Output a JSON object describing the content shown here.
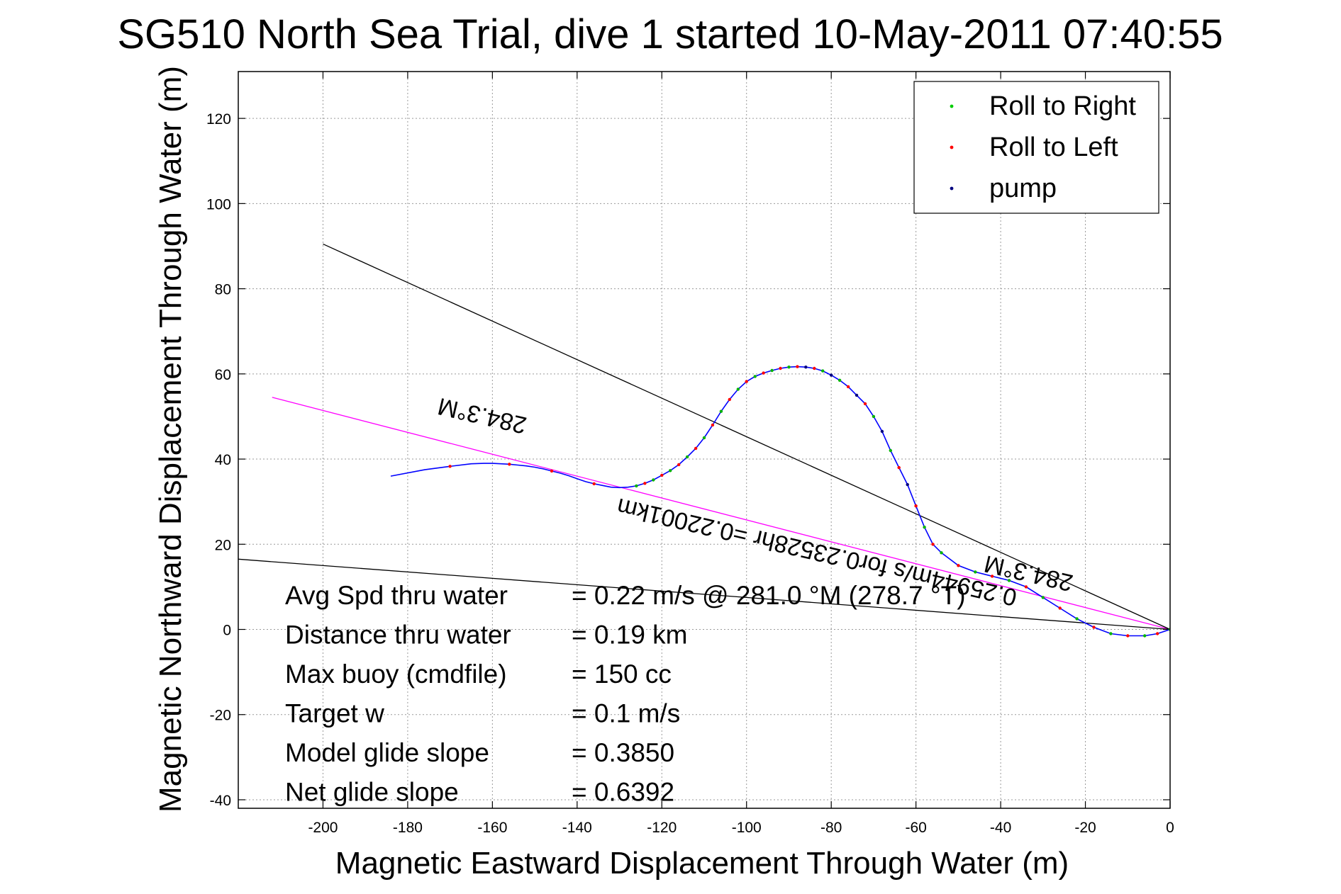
{
  "chart_data": {
    "type": "line",
    "title": "SG510 North Sea Trial, dive 1 started 10-May-2011 07:40:55",
    "xlabel": "Magnetic Eastward Displacement Through Water (m)",
    "ylabel": "Magnetic Northward Displacement Through Water (m)",
    "xlim": [
      -220,
      0
    ],
    "ylim": [
      -42,
      131
    ],
    "xticks": [
      -200,
      -180,
      -160,
      -140,
      -120,
      -100,
      -80,
      -60,
      -40,
      -20,
      0
    ],
    "yticks": [
      -40,
      -20,
      0,
      20,
      40,
      60,
      80,
      100,
      120
    ],
    "grid": true,
    "legend_position": "top-right",
    "legend": [
      {
        "label": "Roll to Right",
        "color": "#00cc00",
        "marker": "."
      },
      {
        "label": "Roll to Left",
        "color": "#ff0000",
        "marker": "."
      },
      {
        "label": "pump",
        "color": "#000080",
        "marker": "."
      }
    ],
    "series": [
      {
        "name": "track",
        "color": "#0000ff",
        "x": [
          0,
          -3,
          -6,
          -10,
          -14,
          -18,
          -22,
          -26,
          -30,
          -34,
          -38,
          -42,
          -46,
          -50,
          -54,
          -56,
          -58,
          -60,
          -62,
          -64,
          -66,
          -68,
          -70,
          -72,
          -74,
          -76,
          -78,
          -80,
          -82,
          -84,
          -86,
          -88,
          -90,
          -92,
          -94,
          -96,
          -98,
          -100,
          -102,
          -104,
          -106,
          -108,
          -110,
          -112,
          -114,
          -116,
          -118,
          -120,
          -122,
          -124,
          -126,
          -128,
          -130,
          -132,
          -134,
          -136,
          -138,
          -140,
          -142,
          -144,
          -146,
          -148,
          -150,
          -152,
          -154,
          -156,
          -158,
          -160,
          -162,
          -165,
          -170,
          -176,
          -184
        ],
        "y": [
          0,
          -1,
          -1.5,
          -1.5,
          -1,
          0.5,
          2.5,
          5,
          7.5,
          10,
          11.5,
          12.5,
          13.5,
          15,
          18,
          20,
          24,
          29,
          34,
          38,
          42,
          46.5,
          50,
          53,
          55,
          57,
          58.5,
          59.7,
          60.7,
          61.3,
          61.6,
          61.7,
          61.6,
          61.3,
          60.8,
          60.2,
          59.4,
          58.2,
          56.4,
          54,
          51.2,
          48,
          45,
          42.5,
          40.5,
          38.7,
          37.3,
          36.2,
          35.1,
          34.3,
          33.7,
          33.4,
          33.3,
          33.4,
          33.8,
          34.2,
          34.7,
          35.4,
          36.1,
          36.7,
          37.2,
          37.7,
          38.1,
          38.4,
          38.6,
          38.8,
          38.9,
          39,
          39,
          38.9,
          38.3,
          37.5,
          36
        ]
      }
    ],
    "reference_lines": [
      {
        "color": "#ff00ff",
        "x": [
          0,
          -212
        ],
        "y": [
          0,
          54.5
        ]
      },
      {
        "color": "#000000",
        "x": [
          0,
          -200
        ],
        "y": [
          0,
          90.5
        ]
      },
      {
        "color": "#000000",
        "x": [
          0,
          -220
        ],
        "y": [
          0,
          16.5
        ]
      }
    ],
    "annotations": [
      {
        "text": "284.3°M",
        "x": -162,
        "y": 52,
        "rotation": 193
      },
      {
        "text": "284.3°M",
        "x": -33,
        "y": 15,
        "rotation": 193
      },
      {
        "text": "0.25944m/s for0.23528hr =0.22001km",
        "x": -83,
        "y": 20,
        "rotation": 193
      }
    ],
    "stats": [
      {
        "label": "Avg Spd thru water",
        "value": "=  0.22 m/s @ 281.0 °M (278.7 °T)"
      },
      {
        "label": "Distance thru water",
        "value": "=  0.19 km"
      },
      {
        "label": "Max buoy (cmdfile)",
        "value": "= 150 cc"
      },
      {
        "label": "Target w",
        "value": "= 0.1 m/s"
      },
      {
        "label": "Model glide slope",
        "value": "= 0.3850"
      },
      {
        "label": "Net glide slope",
        "value": "= 0.6392"
      }
    ]
  }
}
